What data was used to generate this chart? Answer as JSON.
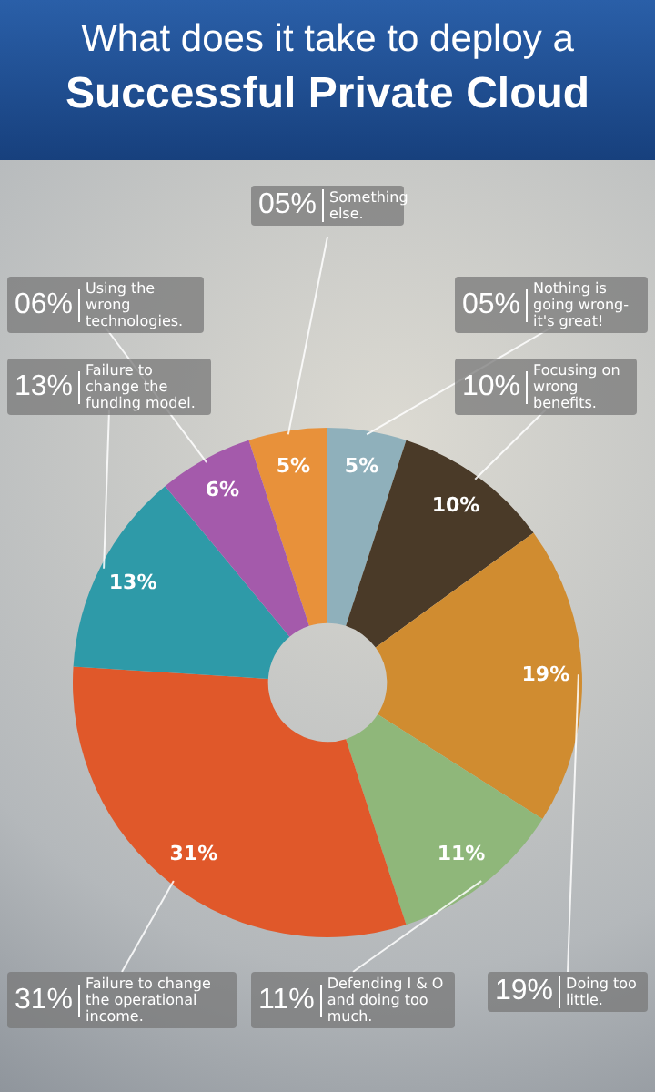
{
  "chart_data": {
    "type": "donut",
    "title": "What does it take to deploy a",
    "subtitle": "Successful Private Cloud",
    "categories": [
      "Something else.",
      "Nothing is going wrong- it's great!",
      "Focusing on wrong benefits.",
      "Doing too little.",
      "Defending I & O and doing too much.",
      "Failure to change the operational income.",
      "Failure to change the funding model.",
      "Using the wrong technologies."
    ],
    "values": [
      5,
      5,
      10,
      19,
      11,
      31,
      13,
      6
    ],
    "colors": [
      "#e8913a",
      "#8fb0bb",
      "#4a3a28",
      "#d08c30",
      "#8fb77a",
      "#e0582a",
      "#2e9aa8",
      "#a45aab"
    ],
    "value_labels": [
      "05%",
      "05%",
      "10%",
      "19%",
      "11%",
      "31%",
      "13%",
      "06%"
    ],
    "annotations": [
      {
        "text": "5%",
        "x": "Something else."
      },
      {
        "text": "5%",
        "x": "Nothing is going wrong- it's great!"
      },
      {
        "text": "10%",
        "x": "Focusing on wrong benefits."
      },
      {
        "text": "19%",
        "x": "Doing too little."
      },
      {
        "text": "11%",
        "x": "Defending I & O and doing too much."
      },
      {
        "text": "31%",
        "x": "Failure to change the operational income."
      },
      {
        "text": "13%",
        "x": "Failure to change the funding model."
      },
      {
        "text": "6%",
        "x": "Using the wrong technologies."
      }
    ],
    "legend": false
  }
}
